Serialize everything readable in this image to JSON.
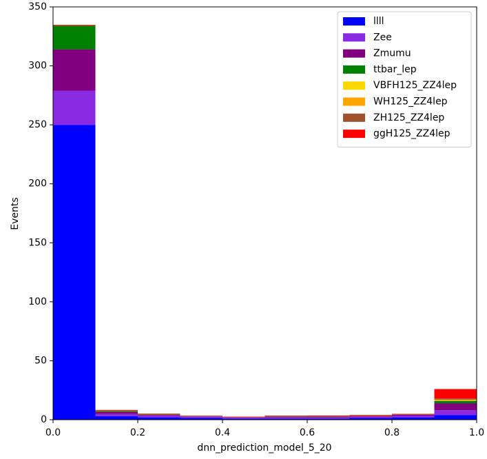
{
  "chart_data": {
    "type": "histogram",
    "stacked": true,
    "xlabel": "dnn_prediction_model_5_20",
    "ylabel": "Events",
    "bins": [
      0,
      0.1,
      0.2,
      0.3,
      0.4,
      0.5,
      0.6,
      0.7,
      0.8,
      0.9,
      1.0
    ],
    "series": [
      {
        "name": "llll",
        "color": "#0000ff",
        "values": [
          250,
          3,
          2,
          1.5,
          1,
          1,
          1,
          1.5,
          2,
          4
        ]
      },
      {
        "name": "Zee",
        "color": "#8a2be2",
        "values": [
          29,
          2,
          1.5,
          1,
          0.8,
          1,
          1,
          1,
          1.5,
          4
        ]
      },
      {
        "name": "Zmumu",
        "color": "#800080",
        "values": [
          35,
          1.5,
          0.5,
          0.3,
          0.2,
          0.5,
          0.5,
          0.5,
          0.7,
          6
        ]
      },
      {
        "name": "ttbar_lep",
        "color": "#008000",
        "values": [
          20,
          0.5,
          0.3,
          0,
          0,
          0,
          0,
          0,
          0,
          2
        ]
      },
      {
        "name": "VBFH125_ZZ4lep",
        "color": "#ffd700",
        "values": [
          0,
          0,
          0,
          0,
          0,
          0,
          0,
          0,
          0,
          0.5
        ]
      },
      {
        "name": "WH125_ZZ4lep",
        "color": "#ffa500",
        "values": [
          0,
          0,
          0,
          0,
          0,
          0,
          0,
          0,
          0,
          0.5
        ]
      },
      {
        "name": "ZH125_ZZ4lep",
        "color": "#a0522d",
        "values": [
          0.3,
          1,
          0.7,
          0.5,
          0.3,
          0.5,
          0.4,
          0.5,
          0.5,
          1
        ]
      },
      {
        "name": "ggH125_ZZ4lep",
        "color": "#ff0000",
        "values": [
          0.5,
          0.3,
          0.2,
          0.2,
          0.3,
          0.5,
          0.6,
          0.5,
          0.3,
          8
        ]
      }
    ],
    "xlim": [
      0,
      1.0
    ],
    "ylim": [
      0,
      350
    ],
    "xticks": [
      {
        "value": 0,
        "label": "0.0"
      },
      0.2,
      0.4,
      0.6,
      0.8,
      {
        "value": 1.0,
        "label": "1.0"
      }
    ],
    "yticks": [
      0,
      50,
      100,
      150,
      200,
      250,
      300,
      350
    ],
    "legend": "upper right"
  }
}
